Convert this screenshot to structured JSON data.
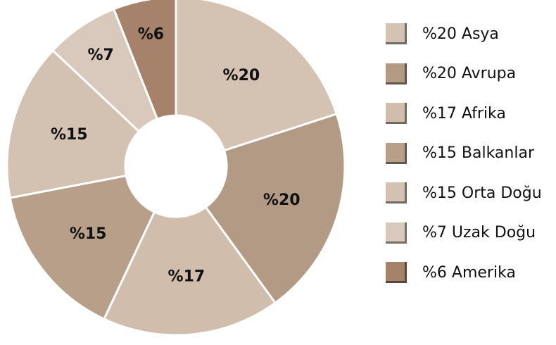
{
  "chart_data": {
    "type": "pie",
    "style": "donut",
    "categories": [
      "Asya",
      "Avrupa",
      "Afrika",
      "Balkanlar",
      "Orta Doğu",
      "Uzak Doğu",
      "Amerika"
    ],
    "values": [
      20,
      20,
      17,
      15,
      15,
      7,
      6
    ],
    "slice_labels": [
      "%20",
      "%20",
      "%17",
      "%15",
      "%15",
      "%7",
      "%6"
    ],
    "slice_colors": [
      "#d4c2b2",
      "#b39a84",
      "#d1bdab",
      "#b89f89",
      "#d3c1b1",
      "#d8c9bc",
      "#a6826a"
    ],
    "legend": {
      "position": "right",
      "items": [
        {
          "label": "%20 Asya",
          "color": "#d4c2b2"
        },
        {
          "label": "%20 Avrupa",
          "color": "#b39a84"
        },
        {
          "label": "%17 Afrika",
          "color": "#d1bdab"
        },
        {
          "label": "%15 Balkanlar",
          "color": "#b89f89"
        },
        {
          "label": "%15 Orta Doğu",
          "color": "#d3c1b1"
        },
        {
          "label": "%7 Uzak Doğu",
          "color": "#d8c9bc"
        },
        {
          "label": "%6 Amerika",
          "color": "#a6826a"
        }
      ]
    },
    "title": "",
    "xlabel": "",
    "ylabel": ""
  }
}
